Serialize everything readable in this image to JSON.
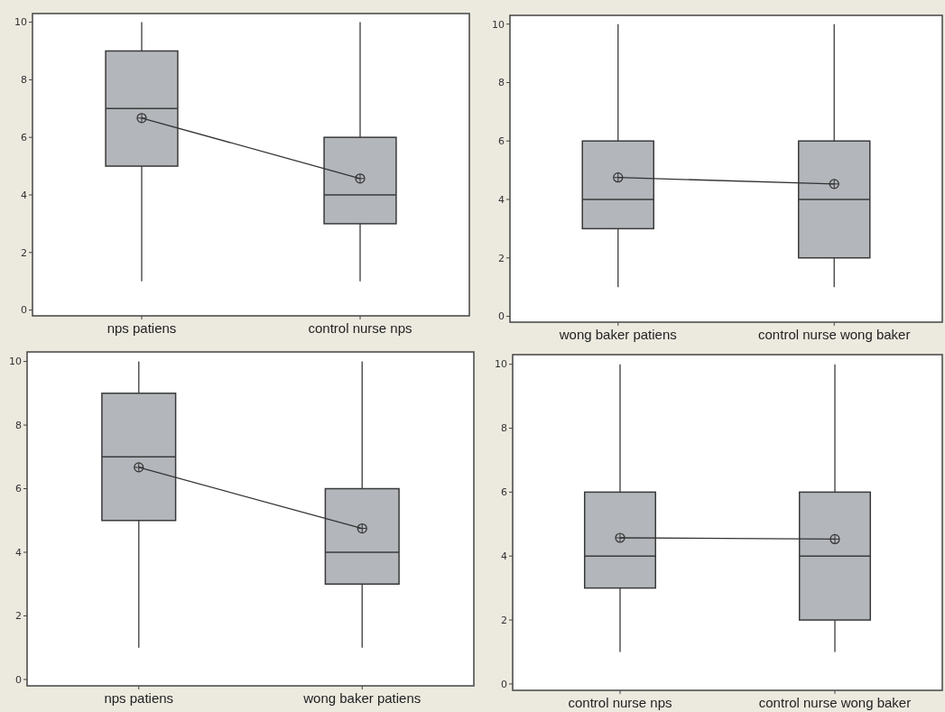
{
  "chart_data": [
    {
      "type": "box",
      "categories": [
        "nps patiens",
        "control nurse nps"
      ],
      "ylim": [
        -0.2,
        10.3
      ],
      "yticks": [
        0,
        2,
        4,
        6,
        8,
        10
      ],
      "color": "#b3b6bb",
      "boxes": [
        {
          "low": 1,
          "q1": 5,
          "median": 7,
          "q3": 9,
          "high": 10,
          "mean": 6.67
        },
        {
          "low": 1,
          "q1": 3,
          "median": 4,
          "q3": 6,
          "high": 10,
          "mean": 4.57
        }
      ],
      "series": [
        {
          "type": "line",
          "values": [
            6.67,
            4.57
          ],
          "color": "#333333"
        }
      ]
    },
    {
      "type": "box",
      "categories": [
        "wong baker patiens",
        "control nurse wong baker"
      ],
      "ylim": [
        -0.2,
        10.3
      ],
      "yticks": [
        0,
        2,
        4,
        6,
        8,
        10
      ],
      "color": "#b3b6bb",
      "boxes": [
        {
          "low": 1,
          "q1": 3,
          "median": 4,
          "q3": 6,
          "high": 10,
          "mean": 4.75
        },
        {
          "low": 1,
          "q1": 2,
          "median": 4,
          "q3": 6,
          "high": 10,
          "mean": 4.53
        }
      ],
      "series": [
        {
          "type": "line",
          "values": [
            4.75,
            4.53
          ],
          "color": "#333333"
        }
      ]
    },
    {
      "type": "box",
      "categories": [
        "nps patiens",
        "wong baker patiens"
      ],
      "ylim": [
        -0.2,
        10.3
      ],
      "yticks": [
        0,
        2,
        4,
        6,
        8,
        10
      ],
      "color": "#b3b6bb",
      "boxes": [
        {
          "low": 1,
          "q1": 5,
          "median": 7,
          "q3": 9,
          "high": 10,
          "mean": 6.67
        },
        {
          "low": 1,
          "q1": 3,
          "median": 4,
          "q3": 6,
          "high": 10,
          "mean": 4.75
        }
      ],
      "series": [
        {
          "type": "line",
          "values": [
            6.67,
            4.75
          ],
          "color": "#333333"
        }
      ]
    },
    {
      "type": "box",
      "categories": [
        "control nurse nps",
        "control nurse wong baker"
      ],
      "ylim": [
        -0.2,
        10.3
      ],
      "yticks": [
        0,
        2,
        4,
        6,
        8,
        10
      ],
      "color": "#b3b6bb",
      "boxes": [
        {
          "low": 1,
          "q1": 3,
          "median": 4,
          "q3": 6,
          "high": 10,
          "mean": 4.57
        },
        {
          "low": 1,
          "q1": 2,
          "median": 4,
          "q3": 6,
          "high": 10,
          "mean": 4.53
        }
      ],
      "series": [
        {
          "type": "line",
          "values": [
            4.57,
            4.53
          ],
          "color": "#333333"
        }
      ]
    }
  ]
}
